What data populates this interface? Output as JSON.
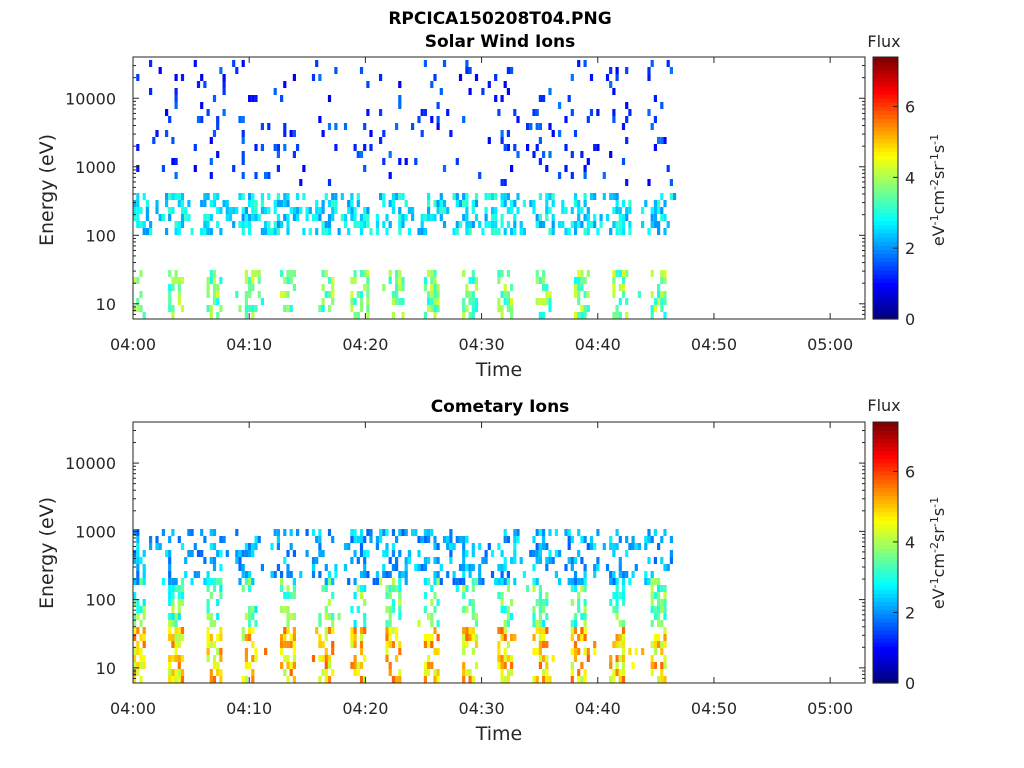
{
  "figure_title": "RPCICA150208T04.PNG",
  "colorbar": {
    "label": "Flux",
    "unit_base": "eV",
    "unit_parts": [
      {
        "base": "eV",
        "exp": "-1"
      },
      {
        "base": "cm",
        "exp": "-2"
      },
      {
        "base": "sr",
        "exp": "-1"
      },
      {
        "base": "s",
        "exp": "-1"
      }
    ],
    "range": [
      0,
      7.4
    ],
    "ticks": [
      "0",
      "2",
      "4",
      "6"
    ],
    "tick_values": [
      0,
      2,
      4,
      6
    ]
  },
  "chart_data": [
    {
      "type": "heatmap",
      "title": "Solar Wind Ions",
      "xlabel": "Time",
      "ylabel": "Energy (eV)",
      "x_tick_labels": [
        "04:00",
        "04:10",
        "04:20",
        "04:30",
        "04:40",
        "04:50",
        "05:00"
      ],
      "x_tick_minutes": [
        0,
        10,
        20,
        30,
        40,
        50,
        60
      ],
      "xlim_minutes": [
        0,
        63
      ],
      "y_tick_labels": [
        "10",
        "100",
        "1000",
        "10000"
      ],
      "y_tick_values": [
        10,
        100,
        1000,
        10000
      ],
      "ylim": [
        6,
        40000
      ],
      "yscale": "log",
      "data_end_minute": 46.5,
      "pulse_minutes": [
        0.3,
        3.6,
        6.9,
        10.2,
        13.1,
        16.4,
        19.4,
        22.5,
        25.7,
        28.8,
        32.0,
        35.3,
        38.6,
        41.8,
        45.0
      ],
      "bands": [
        {
          "energy_range": [
            6,
            30
          ],
          "flux_range": [
            2.8,
            4.4
          ],
          "density": 0.5,
          "location": "pulses"
        },
        {
          "energy_range": [
            90,
            400
          ],
          "flux_range": [
            2.0,
            3.2
          ],
          "density": 0.35,
          "location": "continuous"
        },
        {
          "energy_range": [
            500,
            40000
          ],
          "flux_range": [
            0.8,
            1.8
          ],
          "density": 0.06,
          "location": "continuous"
        }
      ]
    },
    {
      "type": "heatmap",
      "title": "Cometary Ions",
      "xlabel": "Time",
      "ylabel": "Energy (eV)",
      "x_tick_labels": [
        "04:00",
        "04:10",
        "04:20",
        "04:30",
        "04:40",
        "04:50",
        "05:00"
      ],
      "x_tick_minutes": [
        0,
        10,
        20,
        30,
        40,
        50,
        60
      ],
      "xlim_minutes": [
        0,
        63
      ],
      "y_tick_labels": [
        "10",
        "100",
        "1000",
        "10000"
      ],
      "y_tick_values": [
        10,
        100,
        1000,
        10000
      ],
      "ylim": [
        6,
        40000
      ],
      "yscale": "log",
      "data_end_minute": 46.5,
      "pulse_minutes": [
        0.3,
        3.5,
        6.8,
        9.8,
        13.1,
        16.4,
        19.3,
        22.4,
        25.7,
        28.8,
        32.0,
        35.0,
        38.2,
        41.6,
        45.0
      ],
      "bands": [
        {
          "energy_range": [
            6,
            40
          ],
          "flux_range": [
            4.0,
            5.8
          ],
          "density": 0.6,
          "location": "pulses"
        },
        {
          "energy_range": [
            40,
            200
          ],
          "flux_range": [
            2.6,
            4.2
          ],
          "density": 0.45,
          "location": "pulses"
        },
        {
          "energy_range": [
            150,
            1000
          ],
          "flux_range": [
            1.6,
            2.8
          ],
          "density": 0.25,
          "location": "continuous"
        }
      ]
    }
  ]
}
